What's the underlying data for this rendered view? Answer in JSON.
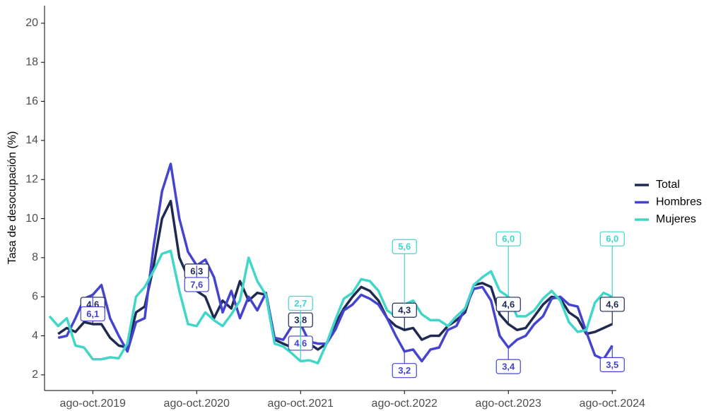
{
  "chart_data": {
    "type": "line",
    "y_label": "Tasa de desocupación (%)",
    "categories": [
      null,
      null,
      null,
      null,
      null,
      "ago-oct.2019",
      null,
      null,
      null,
      null,
      null,
      null,
      null,
      null,
      null,
      null,
      null,
      "ago-oct.2020",
      null,
      null,
      null,
      null,
      null,
      null,
      null,
      null,
      null,
      null,
      null,
      "ago-oct.2021",
      null,
      null,
      null,
      null,
      null,
      null,
      null,
      null,
      null,
      null,
      null,
      "ago-oct.2022",
      null,
      null,
      null,
      null,
      null,
      null,
      null,
      null,
      null,
      null,
      null,
      "ago-oct.2023",
      null,
      null,
      null,
      null,
      null,
      null,
      null,
      null,
      null,
      null,
      null,
      "ago-oct.2024"
    ],
    "series": [
      {
        "name": "Total",
        "color": "#1f2a50",
        "values": [
          null,
          4.1,
          4.4,
          4.2,
          4.7,
          4.6,
          4.6,
          3.9,
          3.5,
          3.4,
          5.2,
          5.5,
          7.5,
          10.0,
          10.9,
          8.0,
          7.0,
          6.3,
          6.0,
          4.9,
          5.8,
          5.4,
          6.8,
          5.8,
          6.2,
          6.1,
          3.8,
          3.6,
          3.4,
          3.8,
          3.6,
          3.3,
          3.6,
          4.6,
          5.4,
          6.0,
          6.5,
          6.3,
          5.8,
          4.9,
          4.5,
          4.3,
          4.4,
          3.8,
          4.0,
          4.0,
          4.5,
          4.8,
          5.2,
          6.6,
          6.7,
          6.5,
          5.1,
          4.6,
          4.3,
          4.4,
          5.0,
          5.6,
          6.0,
          5.9,
          5.2,
          4.9,
          4.1,
          4.2,
          4.4,
          4.6
        ],
        "value_labels": [
          null,
          null,
          null,
          null,
          null,
          "4,6",
          null,
          null,
          null,
          null,
          null,
          null,
          null,
          null,
          null,
          null,
          null,
          "6,3",
          null,
          null,
          null,
          null,
          null,
          null,
          null,
          null,
          null,
          null,
          null,
          "3,8",
          null,
          null,
          null,
          null,
          null,
          null,
          null,
          null,
          null,
          null,
          null,
          "4,3",
          null,
          null,
          null,
          null,
          null,
          null,
          null,
          null,
          null,
          null,
          null,
          "4,6",
          null,
          null,
          null,
          null,
          null,
          null,
          null,
          null,
          null,
          null,
          null,
          "4,6"
        ]
      },
      {
        "name": "Hombres",
        "color": "#4444d0",
        "values": [
          null,
          3.9,
          4.0,
          4.9,
          5.9,
          6.1,
          6.6,
          4.9,
          4.0,
          3.2,
          4.7,
          4.9,
          8.5,
          11.4,
          12.8,
          10.0,
          8.3,
          7.6,
          7.9,
          7.0,
          5.2,
          6.3,
          4.9,
          6.0,
          5.3,
          6.2,
          3.9,
          3.8,
          4.5,
          4.6,
          3.7,
          3.6,
          3.6,
          4.3,
          5.3,
          5.6,
          6.1,
          5.9,
          5.6,
          4.9,
          4.0,
          3.2,
          3.3,
          2.7,
          3.3,
          3.4,
          4.3,
          4.5,
          5.4,
          6.4,
          6.5,
          5.8,
          4.0,
          3.4,
          3.8,
          4.0,
          4.6,
          5.0,
          5.9,
          6.0,
          5.6,
          5.5,
          4.2,
          3.0,
          2.8,
          3.5
        ],
        "value_labels": [
          null,
          null,
          null,
          null,
          null,
          "6,1",
          null,
          null,
          null,
          null,
          null,
          null,
          null,
          null,
          null,
          null,
          null,
          "7,6",
          null,
          null,
          null,
          null,
          null,
          null,
          null,
          null,
          null,
          null,
          null,
          "4,6",
          null,
          null,
          null,
          null,
          null,
          null,
          null,
          null,
          null,
          null,
          null,
          "3,2",
          null,
          null,
          null,
          null,
          null,
          null,
          null,
          null,
          null,
          null,
          null,
          "3,4",
          null,
          null,
          null,
          null,
          null,
          null,
          null,
          null,
          null,
          null,
          null,
          "3,5"
        ]
      },
      {
        "name": "Mujeres",
        "color": "#40d6c8",
        "values": [
          5.0,
          4.5,
          4.9,
          3.5,
          3.4,
          2.8,
          2.8,
          2.9,
          2.85,
          3.6,
          6.0,
          6.5,
          7.3,
          8.2,
          8.35,
          6.3,
          4.6,
          4.5,
          5.2,
          4.8,
          4.5,
          5.1,
          5.8,
          8.0,
          6.8,
          6.1,
          3.6,
          3.45,
          3.1,
          2.7,
          2.75,
          2.6,
          3.6,
          4.8,
          5.9,
          6.2,
          6.9,
          6.8,
          6.3,
          5.3,
          5.0,
          5.6,
          5.8,
          5.1,
          4.8,
          4.8,
          4.5,
          5.0,
          5.4,
          6.6,
          7.0,
          7.3,
          6.3,
          6.0,
          5.0,
          5.0,
          5.3,
          5.9,
          6.3,
          5.8,
          4.7,
          4.2,
          4.3,
          5.7,
          6.2,
          6.0
        ],
        "value_labels": [
          null,
          null,
          null,
          null,
          null,
          null,
          null,
          null,
          null,
          null,
          null,
          null,
          null,
          null,
          null,
          null,
          null,
          null,
          null,
          null,
          null,
          null,
          null,
          null,
          null,
          null,
          null,
          null,
          null,
          "2,7",
          null,
          null,
          null,
          null,
          null,
          null,
          null,
          null,
          null,
          null,
          null,
          "5,6",
          null,
          null,
          null,
          null,
          null,
          null,
          null,
          null,
          null,
          null,
          null,
          "6,0",
          null,
          null,
          null,
          null,
          null,
          null,
          null,
          null,
          null,
          null,
          null,
          "6,0"
        ]
      }
    ],
    "ylim": [
      1.2,
      20.9
    ],
    "yticks": [
      2,
      4,
      6,
      8,
      10,
      12,
      14,
      16,
      18,
      20
    ],
    "grid": false,
    "legend": "right"
  }
}
